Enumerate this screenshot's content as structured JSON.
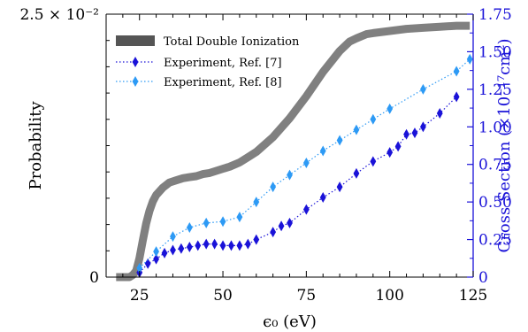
{
  "chart_data": {
    "type": "line",
    "xlabel": "ϵ₀ (eV)",
    "ylabel": "Probability",
    "y2label": "Cross Section (×10⁻¹⁷cm²)",
    "xlim": [
      15,
      125
    ],
    "ylim": [
      0,
      0.025
    ],
    "y2lim": [
      0,
      1.75
    ],
    "x_ticks": [
      25,
      50,
      75,
      100,
      125
    ],
    "y_ticks": [
      0,
      0.025
    ],
    "y_tick_labels": [
      "0",
      "2.5 × 10⁻²"
    ],
    "y2_ticks": [
      0,
      0.25,
      0.5,
      0.75,
      1.0,
      1.25,
      1.5,
      1.75
    ],
    "y2_tick_labels": [
      "0",
      "0.25",
      "0.50",
      "0.75",
      "1.00",
      "1.25",
      "1.50",
      "1.75"
    ],
    "grid": false,
    "legend_position": "top-left",
    "series": [
      {
        "name": "Total Double Ionization",
        "axis": "left",
        "style": "thick-line",
        "color": "#808080",
        "x": [
          18,
          20,
          22,
          23,
          24,
          25,
          26,
          27,
          28,
          29,
          30,
          32,
          34,
          36,
          38,
          40,
          42,
          44,
          46,
          48,
          50,
          52,
          55,
          58,
          60,
          65,
          70,
          75,
          80,
          85,
          88,
          90,
          93,
          95,
          100,
          105,
          110,
          115,
          120,
          124
        ],
        "values": [
          0.0,
          0.0,
          0.0,
          0.0002,
          0.0006,
          0.0018,
          0.0035,
          0.0051,
          0.0063,
          0.0072,
          0.0078,
          0.0085,
          0.009,
          0.0092,
          0.0094,
          0.0095,
          0.0096,
          0.0098,
          0.0099,
          0.0101,
          0.0103,
          0.0105,
          0.0109,
          0.0115,
          0.0119,
          0.0133,
          0.0151,
          0.0172,
          0.0195,
          0.0215,
          0.0224,
          0.0227,
          0.0231,
          0.0232,
          0.0234,
          0.0236,
          0.0237,
          0.0238,
          0.0239,
          0.0239
        ]
      },
      {
        "name": "Experiment, Ref. [7]",
        "axis": "right",
        "style": "dotted-diamond",
        "color": "#1a12d8",
        "x": [
          25,
          27.5,
          30,
          32.5,
          35,
          37.5,
          40,
          42.5,
          45,
          47.5,
          50,
          52.5,
          55,
          57.5,
          60,
          65,
          67.5,
          70,
          75,
          80,
          85,
          90,
          95,
          100,
          102.5,
          105,
          107.5,
          110,
          115,
          120
        ],
        "values": [
          0.03,
          0.09,
          0.12,
          0.16,
          0.18,
          0.19,
          0.2,
          0.21,
          0.22,
          0.22,
          0.21,
          0.21,
          0.21,
          0.22,
          0.25,
          0.3,
          0.34,
          0.36,
          0.45,
          0.53,
          0.6,
          0.69,
          0.77,
          0.83,
          0.87,
          0.95,
          0.96,
          1.0,
          1.09,
          1.2
        ]
      },
      {
        "name": "Experiment, Ref. [8]",
        "axis": "right",
        "style": "dotted-diamond",
        "color": "#2d9af5",
        "x": [
          25,
          30,
          35,
          40,
          45,
          50,
          55,
          60,
          65,
          70,
          75,
          80,
          85,
          90,
          95,
          100,
          110,
          120,
          124
        ],
        "values": [
          0.06,
          0.17,
          0.27,
          0.33,
          0.36,
          0.37,
          0.4,
          0.5,
          0.6,
          0.68,
          0.76,
          0.84,
          0.91,
          0.98,
          1.05,
          1.12,
          1.25,
          1.37,
          1.45
        ]
      }
    ]
  }
}
